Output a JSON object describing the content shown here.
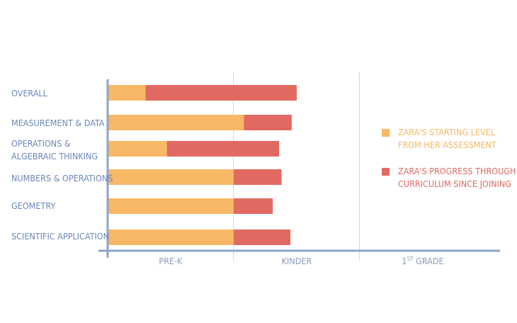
{
  "chart_data": {
    "type": "bar",
    "stacked": true,
    "orientation": "horizontal",
    "categories": [
      "OVERALL",
      "MEASUREMENT & DATA",
      "OPERATIONS & ALGEBRAIC THINKING",
      "NUMBERS & OPERATIONS",
      "GEOMETRY",
      "SCIENTIFIC APPLICATION"
    ],
    "category_lines": [
      [
        "OVERALL"
      ],
      [
        "MEASUREMENT & DATA"
      ],
      [
        "OPERATIONS &",
        "ALGEBRAIC THINKING"
      ],
      [
        "NUMBERS & OPERATIONS"
      ],
      [
        "GEOMETRY"
      ],
      [
        "SCIENTIFIC APPLICATION"
      ]
    ],
    "series": [
      {
        "name": "ZARA'S STARTING LEVEL FROM HER ASSESSMENT",
        "legend_lines": [
          "ZARA'S STARTING LEVEL",
          "FROM HER ASSESSMENT"
        ],
        "color": "#f8b865",
        "values": [
          0.3,
          1.08,
          0.47,
          1.0,
          1.0,
          1.0
        ]
      },
      {
        "name": "ZARA'S PROGRESS THROUGH CURRICULUM SINCE JOINING",
        "legend_lines": [
          "ZARA'S PROGRESS THROUGH",
          "CURRICULUM SINCE JOINING"
        ],
        "color": "#e06a62",
        "values": [
          1.2,
          0.38,
          0.89,
          0.38,
          0.31,
          0.45
        ]
      }
    ],
    "x_tick_labels": [
      "PRE-K",
      "KINDER",
      "GRADE"
    ],
    "grade_superscript": "ST",
    "grade_prefix": "1",
    "xlim": [
      0,
      3
    ],
    "grid": true,
    "legend_position": "right"
  },
  "colors": {
    "axis": "#8fa3c8",
    "grid": "#d7d7d7",
    "label": "#6d86b8",
    "tick_text": "#8d9bb7"
  }
}
